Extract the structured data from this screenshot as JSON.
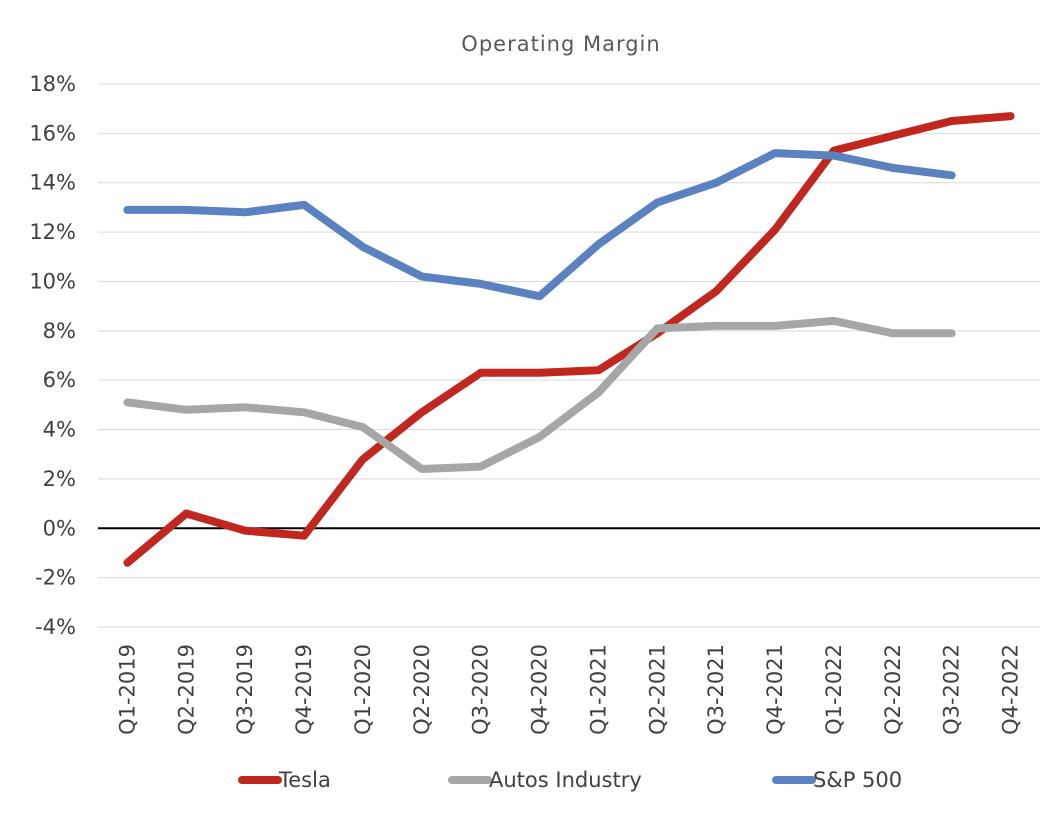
{
  "chart_data": {
    "type": "line",
    "title": "Operating Margin",
    "xlabel": "",
    "ylabel": "",
    "ylim": [
      -4,
      18
    ],
    "ytick_step": 2,
    "ytick_suffix": "%",
    "grid": true,
    "legend_position": "bottom",
    "categories": [
      "Q1-2019",
      "Q2-2019",
      "Q3-2019",
      "Q4-2019",
      "Q1-2020",
      "Q2-2020",
      "Q3-2020",
      "Q4-2020",
      "Q1-2021",
      "Q2-2021",
      "Q3-2021",
      "Q4-2021",
      "Q1-2022",
      "Q2-2022",
      "Q3-2022",
      "Q4-2022"
    ],
    "series": [
      {
        "name": "Tesla",
        "color": "#c0281f",
        "values": [
          -1.4,
          0.6,
          -0.1,
          -0.3,
          2.8,
          4.7,
          6.3,
          6.3,
          6.4,
          7.9,
          9.6,
          12.1,
          15.3,
          15.9,
          16.5,
          16.7
        ]
      },
      {
        "name": "Autos Industry",
        "color": "#a6a6a6",
        "values": [
          5.1,
          4.8,
          4.9,
          4.7,
          4.1,
          2.4,
          2.5,
          3.7,
          5.5,
          8.1,
          8.2,
          8.2,
          8.4,
          7.9,
          7.9,
          null
        ]
      },
      {
        "name": "S&P 500",
        "color": "#5a82c0",
        "values": [
          12.9,
          12.9,
          12.8,
          13.1,
          11.4,
          10.2,
          9.9,
          9.4,
          11.5,
          13.2,
          14.0,
          15.2,
          15.1,
          14.6,
          14.3,
          null
        ]
      }
    ]
  }
}
